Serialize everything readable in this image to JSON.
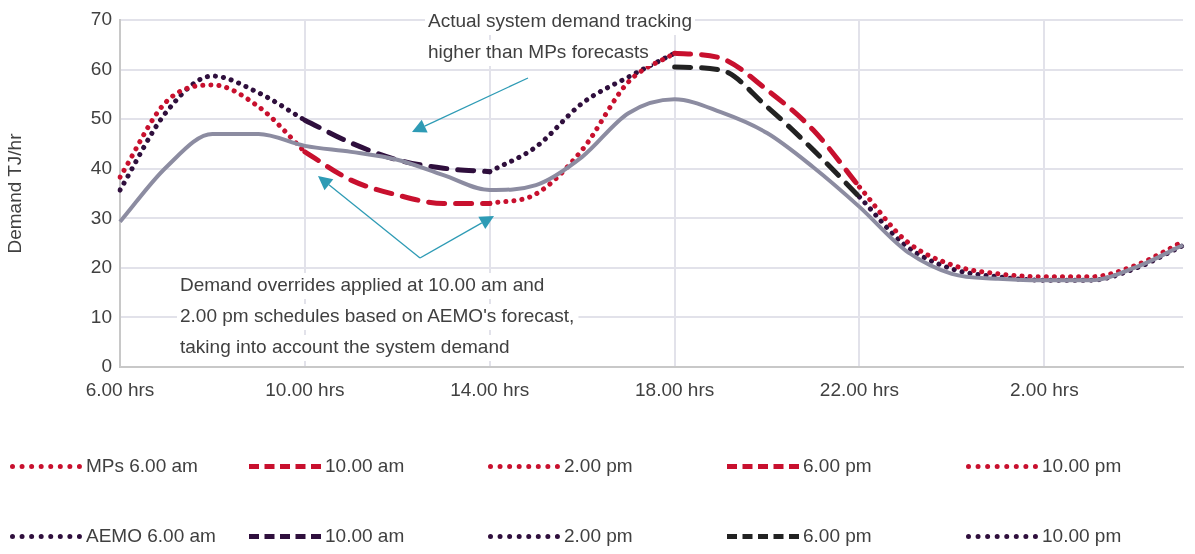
{
  "chart_data": {
    "type": "line",
    "ylabel": "Demand TJ/hr",
    "categories": [
      "6.00 hrs",
      null,
      null,
      null,
      "10.00 hrs",
      null,
      null,
      null,
      "14.00 hrs",
      null,
      null,
      null,
      "18.00 hrs",
      null,
      null,
      null,
      "22.00 hrs",
      null,
      null,
      null,
      "2.00 hrs",
      null,
      null,
      null
    ],
    "ylim": [
      0,
      70
    ],
    "yticks": [
      0,
      10,
      20,
      30,
      40,
      50,
      60,
      70
    ],
    "grid": true,
    "legend": "bottom",
    "marker": "none",
    "series": [
      {
        "color": "#8c8ca1",
        "line_style": "solid",
        "values": [
          29.3,
          40.3,
          47,
          47,
          44.6,
          43.4,
          41.8,
          38.7,
          35.7,
          36.7,
          42.4,
          51.2,
          54,
          51.4,
          47.2,
          40.3,
          32.3,
          23.5,
          18.8,
          17.8,
          17.5,
          17.5,
          20.2,
          24.6
        ]
      },
      {
        "name": "MPs 6.00 am",
        "color": "#c8102e",
        "line_style": "dotted",
        "values": [
          38.3,
          53.5,
          56.9,
          52.5,
          43.4,
          null,
          null,
          null,
          null,
          null,
          null,
          null,
          null,
          null,
          null,
          null,
          null,
          null,
          null,
          null,
          null,
          null,
          null,
          null
        ]
      },
      {
        "name": "10.00 am",
        "color": "#c8102e",
        "line_style": "dashed",
        "values": [
          null,
          null,
          null,
          null,
          43.4,
          37.7,
          34.7,
          33,
          33,
          null,
          null,
          null,
          null,
          null,
          null,
          null,
          null,
          null,
          null,
          null,
          null,
          null,
          null,
          null
        ]
      },
      {
        "name": "2.00 pm",
        "color": "#c8102e",
        "line_style": "dotted",
        "values": [
          null,
          null,
          null,
          null,
          null,
          null,
          null,
          null,
          33,
          34.9,
          43.8,
          57.5,
          63.3,
          null,
          null,
          null,
          null,
          null,
          null,
          null,
          null,
          null,
          null,
          null
        ]
      },
      {
        "name": "6.00 pm",
        "color": "#c8102e",
        "line_style": "dashed",
        "values": [
          null,
          null,
          null,
          null,
          null,
          null,
          null,
          null,
          null,
          null,
          null,
          null,
          63.3,
          62.3,
          55.9,
          47.8,
          36.3,
          null,
          null,
          null,
          null,
          null,
          null,
          null
        ]
      },
      {
        "name": "10.00 pm",
        "color": "#c8102e",
        "line_style": "dotted",
        "values": [
          null,
          null,
          null,
          null,
          null,
          null,
          null,
          null,
          null,
          null,
          null,
          null,
          null,
          null,
          null,
          null,
          36.3,
          25.5,
          20.6,
          18.8,
          18.2,
          18.2,
          20.6,
          25.3
        ]
      },
      {
        "name": "AEMO 6.00 am",
        "color": "#2f0f3d",
        "line_style": "dotted",
        "values": [
          35.7,
          51.4,
          58.7,
          55.3,
          49.8,
          null,
          null,
          null,
          null,
          null,
          null,
          null,
          null,
          null,
          null,
          null,
          null,
          null,
          null,
          null,
          null,
          null,
          null,
          null
        ]
      },
      {
        "name": "10.00 am",
        "color": "#2f0f3d",
        "line_style": "dashed",
        "values": [
          null,
          null,
          null,
          null,
          49.8,
          45.2,
          41.8,
          40.1,
          39.4,
          null,
          null,
          null,
          null,
          null,
          null,
          null,
          null,
          null,
          null,
          null,
          null,
          null,
          null,
          null
        ]
      },
      {
        "name": "2.00 pm",
        "color": "#2f0f3d",
        "line_style": "dotted",
        "values": [
          null,
          null,
          null,
          null,
          null,
          null,
          null,
          null,
          39.4,
          44.4,
          53.2,
          58.5,
          63.3,
          null,
          null,
          null,
          null,
          null,
          null,
          null,
          null,
          null,
          null,
          null
        ]
      },
      {
        "name": "6.00 pm",
        "color": "#222222",
        "line_style": "dashed",
        "values": [
          null,
          null,
          null,
          null,
          null,
          null,
          null,
          null,
          null,
          null,
          null,
          null,
          60.5,
          59.9,
          52.5,
          43.8,
          34.3,
          null,
          null,
          null,
          null,
          null,
          null,
          null
        ]
      },
      {
        "name": "10.00 pm",
        "color": "#2f0f3d",
        "line_style": "dotted",
        "values": [
          null,
          null,
          null,
          null,
          null,
          null,
          null,
          null,
          null,
          null,
          null,
          null,
          null,
          null,
          null,
          null,
          34.3,
          24.5,
          19.8,
          18.2,
          17.5,
          17.5,
          20,
          24.5
        ]
      }
    ],
    "annotations": [
      "Actual system demand tracking\nhigher than MPs forecasts",
      "Demand overrides applied at 10.00 am and\n2.00 pm schedules based on AEMO's forecast,\ntaking into account the system demand"
    ]
  }
}
